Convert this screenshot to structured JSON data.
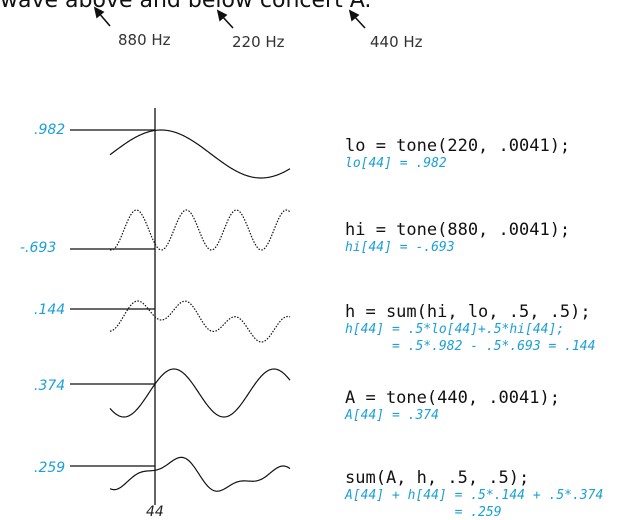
{
  "heading": "wave above and below concert A.",
  "freq_labels": [
    "880 Hz",
    "220 Hz",
    "440 Hz"
  ],
  "sample_index": "44",
  "rows": [
    {
      "value_label": ".982",
      "code": "lo = tone(220, .0041);",
      "notes": [
        "lo[44] = .982"
      ]
    },
    {
      "value_label": "-.693",
      "code": "hi = tone(880, .0041);",
      "notes": [
        "hi[44] = -.693"
      ]
    },
    {
      "value_label": ".144",
      "code": "h = sum(hi, lo, .5, .5);",
      "notes": [
        "h[44] = .5*lo[44]+.5*hi[44];",
        "      = .5*.982 - .5*.693 = .144"
      ]
    },
    {
      "value_label": ".374",
      "code": "A = tone(440, .0041);",
      "notes": [
        "A[44] = .374"
      ]
    },
    {
      "value_label": ".259",
      "code": "sum(A, h, .5, .5);",
      "notes": [
        "A[44] + h[44] = .5*.144 + .5*.374",
        "              = .259"
      ]
    }
  ],
  "colors": {
    "accent": "#1aa0d8",
    "ink": "#111111"
  }
}
